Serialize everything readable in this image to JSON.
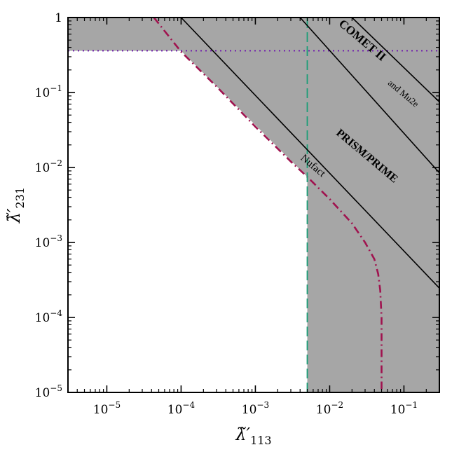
{
  "chart_data": {
    "type": "line",
    "title": "",
    "xlabel": "λ̃′113",
    "ylabel": "λ̃′231",
    "x_scale": "log",
    "y_scale": "log",
    "xlim": [
      3e-06,
      0.3
    ],
    "ylim": [
      1e-05,
      1
    ],
    "grid": false,
    "legend": "none",
    "x_ticks": [
      {
        "value": 1e-05,
        "label": "10−5"
      },
      {
        "value": 0.0001,
        "label": "10−4"
      },
      {
        "value": 0.001,
        "label": "10−3"
      },
      {
        "value": 0.01,
        "label": "10−2"
      },
      {
        "value": 0.1,
        "label": "10−1"
      }
    ],
    "y_ticks": [
      {
        "value": 1e-05,
        "label": "10−5"
      },
      {
        "value": 0.0001,
        "label": "10−4"
      },
      {
        "value": 0.001,
        "label": "10−3"
      },
      {
        "value": 0.01,
        "label": "10−2"
      },
      {
        "value": 0.1,
        "label": "10−1"
      },
      {
        "value": 1,
        "label": "1"
      }
    ],
    "shaded_region": {
      "color": "#a6a6a6",
      "boundary": [
        [
          3e-06,
          1
        ],
        [
          3e-06,
          0.36
        ],
        [
          0.0001,
          0.36
        ],
        [
          0.005,
          0.0075
        ],
        [
          0.005,
          1e-05
        ],
        [
          0.3,
          1e-05
        ],
        [
          0.3,
          1
        ]
      ]
    },
    "series": [
      {
        "style": "dashdot",
        "color": "#a0134f",
        "x": [
          4.3e-05,
          0.0001,
          0.0003,
          0.001,
          0.003,
          0.005,
          0.01,
          0.02,
          0.03,
          0.04,
          0.045,
          0.048,
          0.05,
          0.05
        ],
        "y": [
          1,
          0.35,
          0.12,
          0.035,
          0.012,
          0.0075,
          0.0038,
          0.0018,
          0.001,
          0.0006,
          0.00038,
          0.00023,
          0.0001,
          1e-05
        ]
      },
      {
        "style": "dashed",
        "color": "#1b9e77",
        "x": [
          0.005,
          0.005
        ],
        "y": [
          1e-05,
          1
        ]
      },
      {
        "style": "dotted",
        "color": "#6a0dad",
        "x": [
          3e-06,
          0.3
        ],
        "y": [
          0.36,
          0.36
        ]
      },
      {
        "name": "Nufact",
        "style": "solid",
        "color": "#000000",
        "x": [
          0.0001,
          0.3
        ],
        "y": [
          1,
          0.000246
        ]
      },
      {
        "name": "PRISM/PRIME",
        "style": "solid",
        "color": "#000000",
        "x": [
          0.004,
          0.3
        ],
        "y": [
          1,
          0.0085
        ]
      },
      {
        "name": "COMET II and Mu2e",
        "style": "solid",
        "color": "#000000",
        "x": [
          0.02,
          0.3
        ],
        "y": [
          1,
          0.075
        ]
      }
    ],
    "annotations": [
      {
        "text": "Nufact",
        "x": 0.004,
        "y": 0.013,
        "rotation": 40,
        "size": 15,
        "bold": false
      },
      {
        "text": "PRISM/PRIME",
        "x": 0.012,
        "y": 0.028,
        "rotation": 40,
        "size": 16,
        "bold": true
      },
      {
        "text": "COMET II",
        "x": 0.013,
        "y": 0.8,
        "rotation": 40,
        "size": 17,
        "bold": true
      },
      {
        "text": "and Mu2e",
        "x": 0.06,
        "y": 0.13,
        "rotation": 40,
        "size": 13,
        "bold": false
      }
    ]
  }
}
